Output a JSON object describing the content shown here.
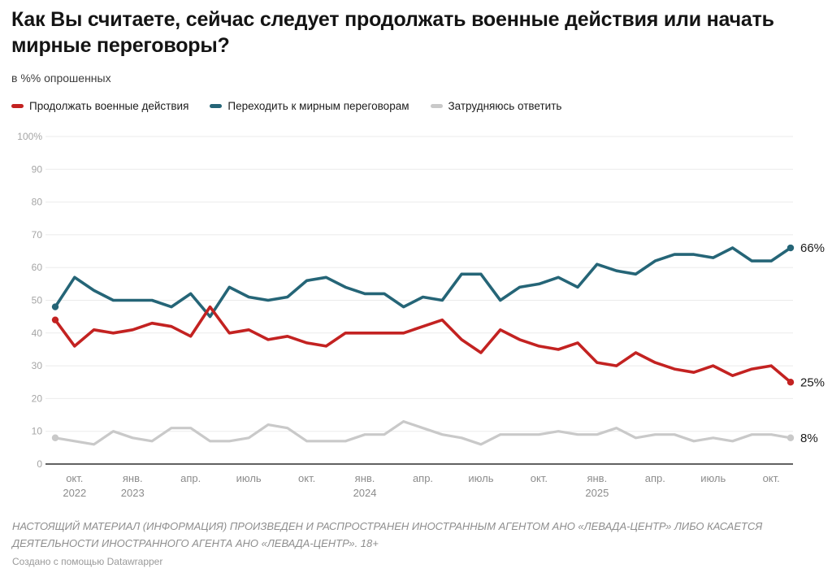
{
  "title": "Как Вы считаете, сейчас следует продолжать военные действия или начать мирные переговоры?",
  "subtitle": "в %% опрошенных",
  "chart_data": {
    "type": "line",
    "x": [
      "2022-09",
      "2022-10",
      "2022-11",
      "2022-12",
      "2023-01",
      "2023-02",
      "2023-03",
      "2023-04",
      "2023-05",
      "2023-06",
      "2023-07",
      "2023-08",
      "2023-09",
      "2023-10",
      "2023-11",
      "2023-12",
      "2024-01",
      "2024-02",
      "2024-03",
      "2024-04",
      "2024-05",
      "2024-06",
      "2024-07",
      "2024-08",
      "2024-09",
      "2024-10",
      "2024-11",
      "2024-12",
      "2025-01",
      "2025-02",
      "2025-03",
      "2025-04",
      "2025-05",
      "2025-06",
      "2025-07",
      "2025-08",
      "2025-09",
      "2025-10",
      "2025-11"
    ],
    "series": [
      {
        "name": "Продолжать военные действия",
        "color": "#c32221",
        "end_label": "25%",
        "values": [
          44,
          36,
          41,
          40,
          41,
          43,
          42,
          39,
          48,
          40,
          41,
          38,
          39,
          37,
          36,
          40,
          40,
          40,
          40,
          42,
          44,
          38,
          34,
          41,
          38,
          36,
          35,
          37,
          31,
          30,
          34,
          31,
          29,
          28,
          30,
          27,
          29,
          30,
          25
        ]
      },
      {
        "name": "Переходить к мирным переговорам",
        "color": "#256577",
        "end_label": "66%",
        "values": [
          48,
          57,
          53,
          50,
          50,
          50,
          48,
          52,
          45,
          54,
          51,
          50,
          51,
          56,
          57,
          54,
          52,
          52,
          48,
          51,
          50,
          58,
          58,
          50,
          54,
          55,
          57,
          54,
          61,
          59,
          58,
          62,
          64,
          64,
          63,
          66,
          62,
          62,
          66
        ]
      },
      {
        "name": "Затрудняюсь ответить",
        "color": "#c9c9c9",
        "end_label": "8%",
        "values": [
          8,
          7,
          6,
          10,
          8,
          7,
          11,
          11,
          7,
          7,
          8,
          12,
          11,
          7,
          7,
          7,
          9,
          9,
          13,
          11,
          9,
          8,
          6,
          9,
          9,
          9,
          10,
          9,
          9,
          11,
          8,
          9,
          9,
          7,
          8,
          7,
          9,
          9,
          8
        ]
      }
    ],
    "x_ticks": [
      {
        "index": 1,
        "label": "окт.",
        "year": "2022"
      },
      {
        "index": 4,
        "label": "янв.",
        "year": "2023"
      },
      {
        "index": 7,
        "label": "апр."
      },
      {
        "index": 10,
        "label": "июль"
      },
      {
        "index": 13,
        "label": "окт."
      },
      {
        "index": 16,
        "label": "янв.",
        "year": "2024"
      },
      {
        "index": 19,
        "label": "апр."
      },
      {
        "index": 22,
        "label": "июль"
      },
      {
        "index": 25,
        "label": "окт."
      },
      {
        "index": 28,
        "label": "янв.",
        "year": "2025"
      },
      {
        "index": 31,
        "label": "апр."
      },
      {
        "index": 34,
        "label": "июль"
      },
      {
        "index": 37,
        "label": "окт."
      }
    ],
    "y_axis": {
      "min": 0,
      "max": 100,
      "step": 10,
      "max_label": "100%"
    },
    "grid": true,
    "legend_position": "top"
  },
  "footer": {
    "disclaimer": "НАСТОЯЩИЙ МАТЕРИАЛ (ИНФОРМАЦИЯ) ПРОИЗВЕДЕН И РАСПРОСТРАНЕН ИНОСТРАННЫМ АГЕНТОМ АНО «ЛЕВАДА-ЦЕНТР» ЛИБО КАСАЕТСЯ ДЕЯТЕЛЬНОСТИ ИНОСТРАННОГО АГЕНТА АНО «ЛЕВАДА-ЦЕНТР». 18+",
    "credit": "Создано с помощью Datawrapper"
  }
}
